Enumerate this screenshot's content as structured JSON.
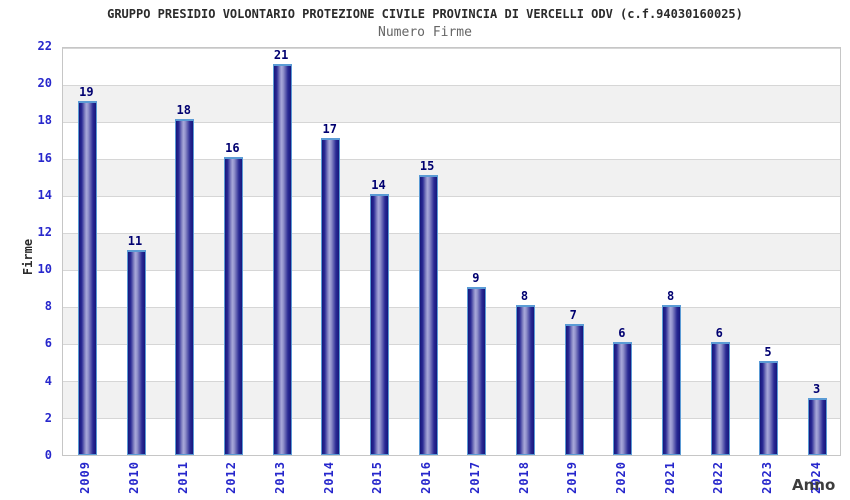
{
  "chart_data": {
    "type": "bar",
    "title": "GRUPPO PRESIDIO VOLONTARIO PROTEZIONE CIVILE PROVINCIA DI VERCELLI ODV (c.f.94030160025)",
    "subtitle": "Numero Firme",
    "xlabel": "Anno",
    "ylabel": "Firme",
    "categories": [
      "2009",
      "2010",
      "2011",
      "2012",
      "2013",
      "2014",
      "2015",
      "2016",
      "2017",
      "2018",
      "2019",
      "2020",
      "2021",
      "2022",
      "2023",
      "2024"
    ],
    "values": [
      19,
      11,
      18,
      16,
      21,
      17,
      14,
      15,
      9,
      8,
      7,
      6,
      8,
      6,
      5,
      3
    ],
    "ylim": [
      0,
      22
    ],
    "ytick_step": 2,
    "yticks": [
      0,
      2,
      4,
      6,
      8,
      10,
      12,
      14,
      16,
      18,
      20,
      22
    ],
    "grid": "horizontal gridlines with alternating shaded bands every 2 units",
    "legend": "none",
    "bar_value_labels": "shown above each bar"
  },
  "colors": {
    "tick_label": "#2727cc",
    "value_label": "#000070",
    "gridline": "#d6d6d6",
    "band": "#f1f1f1",
    "plot_border": "#c6c6c6",
    "title": "#2b2b2b",
    "subtitle": "#666666",
    "axis_title": "#2b2b2b",
    "xlabel": "#3d3d3d",
    "bar_edge": "#16167c",
    "bar_mid": "#2a2a94",
    "bar_highlight": "#a8a8da",
    "bar_cap": "#5b9bd5",
    "background": "#ffffff"
  }
}
